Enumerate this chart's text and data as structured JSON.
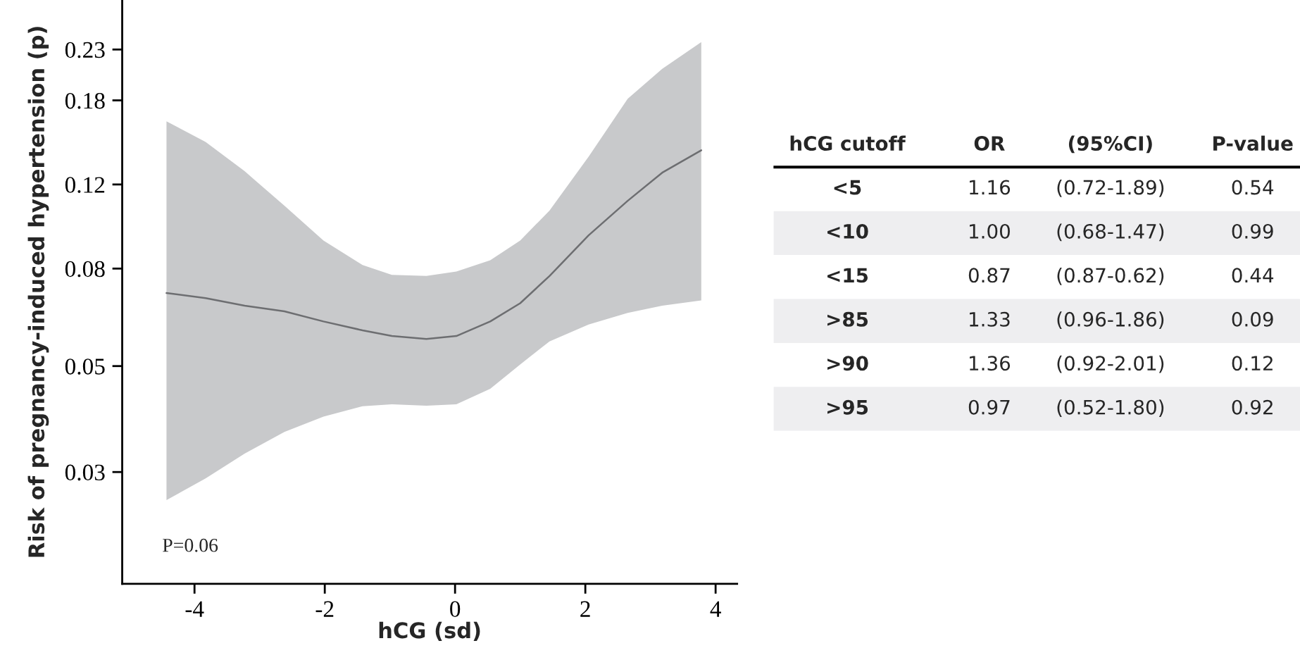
{
  "chart_data": [
    {
      "type": "line",
      "xlabel": "hCG (sd)",
      "ylabel": "Risk of pregnancy-induced hypertension (p)",
      "log": "y",
      "x": [
        -4.43,
        -3.83,
        -3.23,
        -2.62,
        -2.02,
        -1.42,
        -0.97,
        -0.44,
        0.02,
        0.54,
        1.0,
        1.45,
        2.05,
        2.65,
        3.18,
        3.78
      ],
      "series": [
        {
          "color": "#6d6e71",
          "values": [
            0.0711,
            0.0694,
            0.0669,
            0.0651,
            0.062,
            0.0594,
            0.0578,
            0.057,
            0.0578,
            0.062,
            0.0677,
            0.0772,
            0.0939,
            0.1109,
            0.127,
            0.1415
          ],
          "lower": [
            0.0262,
            0.0291,
            0.0328,
            0.0364,
            0.0392,
            0.0412,
            0.0416,
            0.0413,
            0.0416,
            0.0448,
            0.0504,
            0.0563,
            0.0611,
            0.0646,
            0.0669,
            0.0686
          ],
          "upper": [
            0.1627,
            0.1473,
            0.1279,
            0.1083,
            0.0916,
            0.0814,
            0.0776,
            0.0772,
            0.0789,
            0.0833,
            0.0916,
            0.1058,
            0.1372,
            0.1813,
            0.2095,
            0.2384
          ]
        }
      ],
      "xlim": [
        -5.11,
        4.33
      ],
      "xticks": [
        -4,
        -2,
        0,
        2,
        4
      ],
      "ylim": [
        0.0175,
        0.292
      ],
      "yticks": [
        0.03,
        0.05,
        0.08,
        0.12,
        0.18,
        0.23
      ],
      "grid": false,
      "marker": "none",
      "line_style": "solid",
      "annotations": [
        "P=0.06"
      ]
    },
    {
      "type": "other",
      "annotations": [
        "hCG cutoff",
        "OR",
        "(95%CI)",
        "P-value",
        "<5",
        "1.16",
        "(0.72-1.89)",
        "0.54",
        "<10",
        "1.00",
        "(0.68-1.47)",
        "0.99",
        "<15",
        "0.87",
        "(0.87-0.62)",
        "0.44",
        ">85",
        "1.33",
        "(0.96-1.86)",
        "0.09",
        ">90",
        "1.36",
        "(0.92-2.01)",
        "0.12",
        ">95",
        "0.97",
        "(0.52-1.80)",
        "0.92"
      ]
    }
  ]
}
